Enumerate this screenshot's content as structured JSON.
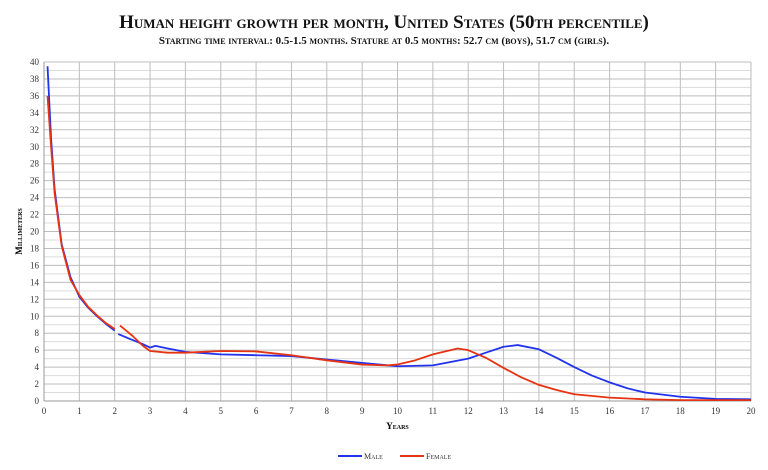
{
  "chart_data": {
    "type": "line",
    "title": "Human height growth per month, United States (50th percentile)",
    "subtitle": "Starting time interval: 0.5-1.5 months. Stature at 0.5 months: 52.7 cm (boys), 51.7 cm (girls).",
    "xlabel": "Years",
    "ylabel": "Millimeters",
    "xlim": [
      0,
      20
    ],
    "ylim": [
      0,
      40
    ],
    "xticks": [
      0,
      1,
      2,
      3,
      4,
      5,
      6,
      7,
      8,
      9,
      10,
      11,
      12,
      13,
      14,
      15,
      16,
      17,
      18,
      19,
      20
    ],
    "yticks": [
      0,
      2,
      4,
      6,
      8,
      10,
      12,
      14,
      16,
      18,
      20,
      22,
      24,
      26,
      28,
      30,
      32,
      34,
      36,
      38,
      40
    ],
    "grid": true,
    "legend_position": "bottom",
    "series": [
      {
        "name": "Male",
        "color": "#2233ee",
        "segments": [
          [
            [
              0.1,
              39.5
            ],
            [
              0.2,
              31
            ],
            [
              0.3,
              25
            ],
            [
              0.5,
              18.5
            ],
            [
              0.75,
              14.6
            ],
            [
              1,
              12.3
            ],
            [
              1.25,
              11
            ],
            [
              1.5,
              10
            ],
            [
              1.75,
              9.1
            ],
            [
              2,
              8.3
            ]
          ],
          [
            [
              2.1,
              7.9
            ],
            [
              2.5,
              7.2
            ],
            [
              2.8,
              6.7
            ],
            [
              3,
              6.3
            ],
            [
              3.15,
              6.5
            ],
            [
              3.5,
              6.2
            ],
            [
              4,
              5.8
            ],
            [
              5,
              5.5
            ],
            [
              6,
              5.4
            ],
            [
              7,
              5.3
            ],
            [
              8,
              4.9
            ],
            [
              9,
              4.5
            ],
            [
              10,
              4.1
            ],
            [
              11,
              4.2
            ],
            [
              12,
              5.0
            ],
            [
              12.5,
              5.7
            ],
            [
              13,
              6.4
            ],
            [
              13.4,
              6.6
            ],
            [
              14,
              6.1
            ],
            [
              14.5,
              5.1
            ],
            [
              15,
              4.0
            ],
            [
              15.5,
              3.0
            ],
            [
              16,
              2.2
            ],
            [
              16.5,
              1.5
            ],
            [
              17,
              1.0
            ],
            [
              18,
              0.5
            ],
            [
              19,
              0.25
            ],
            [
              20,
              0.2
            ]
          ]
        ]
      },
      {
        "name": "Female",
        "color": "#e63312",
        "segments": [
          [
            [
              0.1,
              36
            ],
            [
              0.2,
              30
            ],
            [
              0.3,
              24.5
            ],
            [
              0.5,
              18.3
            ],
            [
              0.75,
              14.3
            ],
            [
              1,
              12.5
            ],
            [
              1.25,
              11.1
            ],
            [
              1.5,
              10.1
            ],
            [
              1.75,
              9.2
            ],
            [
              2,
              8.5
            ]
          ],
          [
            [
              2.15,
              8.9
            ],
            [
              2.5,
              7.7
            ],
            [
              2.8,
              6.5
            ],
            [
              3,
              5.9
            ],
            [
              3.5,
              5.7
            ],
            [
              4,
              5.7
            ],
            [
              5,
              5.9
            ],
            [
              6,
              5.85
            ],
            [
              7,
              5.4
            ],
            [
              8,
              4.8
            ],
            [
              9,
              4.3
            ],
            [
              9.7,
              4.2
            ],
            [
              10,
              4.3
            ],
            [
              10.5,
              4.8
            ],
            [
              11,
              5.5
            ],
            [
              11.7,
              6.2
            ],
            [
              12,
              6.0
            ],
            [
              12.5,
              5.1
            ],
            [
              13,
              3.9
            ],
            [
              13.5,
              2.8
            ],
            [
              14,
              1.9
            ],
            [
              14.5,
              1.3
            ],
            [
              15,
              0.8
            ],
            [
              16,
              0.4
            ],
            [
              17,
              0.2
            ],
            [
              18,
              0.1
            ],
            [
              20,
              0.1
            ]
          ]
        ]
      }
    ]
  }
}
